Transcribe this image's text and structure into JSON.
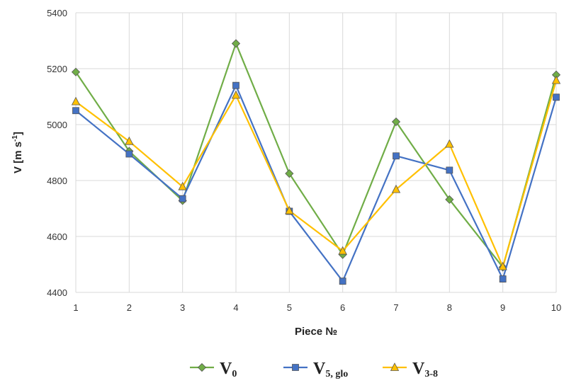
{
  "chart_data": {
    "type": "line",
    "xlabel": "Piece №",
    "ylabel_main": "V [m s",
    "ylabel_sup": "-1",
    "ylabel_end": "]",
    "x": [
      1,
      2,
      3,
      4,
      5,
      6,
      7,
      8,
      9,
      10
    ],
    "ylim": [
      4400,
      5400
    ],
    "yticks": [
      4400,
      4600,
      4800,
      5000,
      5200,
      5400
    ],
    "grid": true,
    "legend_position": "bottom",
    "series": [
      {
        "name_main": "V",
        "name_sub": "0",
        "color": "#70ad47",
        "marker": "diamond",
        "values": [
          5188,
          4905,
          4728,
          5290,
          4825,
          4535,
          5010,
          4732,
          4490,
          5178
        ]
      },
      {
        "name_main": "V",
        "name_sub": "5, glo",
        "color": "#4472c4",
        "marker": "square",
        "values": [
          5050,
          4895,
          4735,
          5140,
          4690,
          4440,
          4888,
          4837,
          4448,
          5098
        ]
      },
      {
        "name_main": "V",
        "name_sub": "3-8",
        "color": "#ffc000",
        "marker": "triangle",
        "values": [
          5082,
          4940,
          4778,
          5105,
          4692,
          4548,
          4768,
          4930,
          4492,
          5158
        ]
      }
    ]
  }
}
